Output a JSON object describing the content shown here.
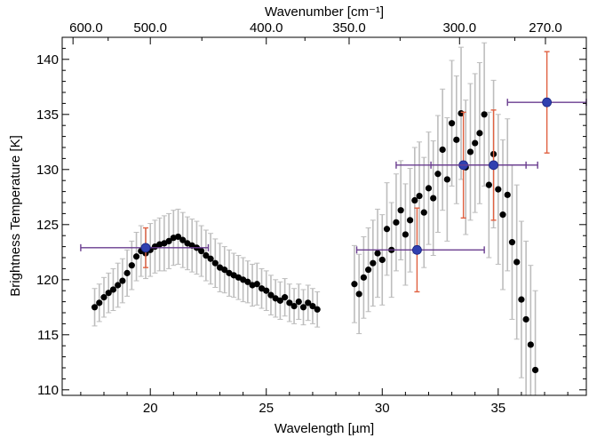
{
  "chart_data": {
    "type": "scatter",
    "xlabel": "Wavelength [µm]",
    "ylabel": "Brightness Temperature [K]",
    "x2label": "Wavenumber [cm⁻¹]",
    "xlim": [
      16.2,
      38.8
    ],
    "ylim": [
      109.5,
      142.0
    ],
    "x_ticks": [
      20,
      25,
      30,
      35
    ],
    "x_tick_labels": [
      "20",
      "25",
      "30",
      "35"
    ],
    "y_ticks": [
      110,
      115,
      120,
      125,
      130,
      135,
      140
    ],
    "y_tick_labels": [
      "110",
      "115",
      "120",
      "125",
      "130",
      "135",
      "140"
    ],
    "x2_ticks": [
      600.0,
      500.0,
      400.0,
      350.0,
      300.0,
      270.0
    ],
    "x2_tick_labels": [
      "600.0",
      "500.0",
      "400.0",
      "350.0",
      "300.0",
      "270.0"
    ],
    "grid": false,
    "series": [
      {
        "marker": "black-dot",
        "color": "#000000",
        "errorbar_color": "#bdbdbd",
        "x": [
          17.6,
          17.8,
          18.0,
          18.2,
          18.4,
          18.6,
          18.8,
          19.0,
          19.2,
          19.4,
          19.6,
          19.8,
          20.0,
          20.2,
          20.4,
          20.6,
          20.8,
          21.0,
          21.2,
          21.4,
          21.6,
          21.8,
          22.0,
          22.2,
          22.4,
          22.6,
          22.8,
          23.0,
          23.2,
          23.4,
          23.6,
          23.8,
          24.0,
          24.2,
          24.4,
          24.6,
          24.8,
          25.0,
          25.2,
          25.4,
          25.6,
          25.8,
          26.0,
          26.2,
          26.4,
          26.6,
          26.8,
          27.0,
          27.2,
          28.8,
          29.0,
          29.2,
          29.4,
          29.6,
          29.8,
          30.0,
          30.2,
          30.4,
          30.6,
          30.8,
          31.0,
          31.2,
          31.4,
          31.6,
          31.8,
          32.0,
          32.2,
          32.4,
          32.6,
          32.8,
          33.0,
          33.2,
          33.4,
          33.6,
          33.8,
          34.0,
          34.2,
          34.4,
          34.6,
          34.8,
          35.0,
          35.2,
          35.4,
          35.6,
          35.8,
          36.0,
          36.2,
          36.4,
          36.6
        ],
        "y": [
          117.5,
          117.9,
          118.4,
          118.8,
          119.1,
          119.5,
          119.9,
          120.6,
          121.3,
          122.1,
          122.6,
          122.4,
          122.7,
          123.0,
          123.2,
          123.3,
          123.5,
          123.8,
          123.9,
          123.6,
          123.3,
          123.1,
          122.9,
          122.6,
          122.2,
          121.9,
          121.5,
          121.1,
          120.9,
          120.6,
          120.4,
          120.2,
          120.0,
          119.8,
          119.5,
          119.6,
          119.2,
          119.0,
          118.6,
          118.3,
          118.1,
          118.4,
          117.9,
          117.6,
          118.0,
          117.5,
          117.9,
          117.6,
          117.3,
          119.6,
          118.7,
          120.2,
          120.9,
          121.5,
          122.4,
          121.8,
          124.6,
          122.7,
          125.2,
          126.3,
          124.1,
          125.4,
          127.2,
          127.6,
          126.1,
          128.3,
          127.4,
          129.6,
          131.8,
          129.1,
          134.2,
          132.7,
          135.1,
          130.2,
          131.6,
          132.4,
          133.3,
          135.0,
          128.6,
          131.4,
          128.2,
          125.9,
          127.7,
          123.4,
          121.6,
          118.2,
          116.4,
          114.1,
          111.8
        ],
        "yerr": [
          1.7,
          1.7,
          1.8,
          1.8,
          1.9,
          2.0,
          2.0,
          2.1,
          2.2,
          2.2,
          2.3,
          2.3,
          2.4,
          2.4,
          2.4,
          2.5,
          2.5,
          2.5,
          2.5,
          2.5,
          2.4,
          2.4,
          2.4,
          2.3,
          2.3,
          2.3,
          2.2,
          2.2,
          2.1,
          2.1,
          2.0,
          2.0,
          2.0,
          1.9,
          1.9,
          1.9,
          1.8,
          1.8,
          1.8,
          1.7,
          1.7,
          1.7,
          1.7,
          1.6,
          1.6,
          1.6,
          1.6,
          1.6,
          1.6,
          3.5,
          3.6,
          3.7,
          3.8,
          3.9,
          4.0,
          4.1,
          4.2,
          4.3,
          4.4,
          4.5,
          4.6,
          4.7,
          4.8,
          4.9,
          5.0,
          5.1,
          5.2,
          5.3,
          5.5,
          5.6,
          5.7,
          5.8,
          6.0,
          6.1,
          6.2,
          6.3,
          6.4,
          6.5,
          6.6,
          6.7,
          6.8,
          6.8,
          6.9,
          7.0,
          7.0,
          7.1,
          7.1,
          7.2,
          7.2
        ]
      },
      {
        "marker": "blue-dot",
        "color": "#3040b0",
        "xerr_color": "#6a3d8f",
        "yerr_color": "#e06040",
        "x": [
          19.8,
          31.5,
          33.5,
          34.8,
          37.1
        ],
        "y": [
          122.9,
          122.7,
          130.4,
          130.4,
          136.1
        ],
        "x_low": [
          17.0,
          28.9,
          30.6,
          32.1,
          35.4
        ],
        "x_high": [
          22.5,
          34.4,
          36.2,
          36.7,
          38.8
        ],
        "yerr": [
          1.8,
          3.8,
          4.8,
          5.0,
          4.6
        ]
      }
    ]
  }
}
